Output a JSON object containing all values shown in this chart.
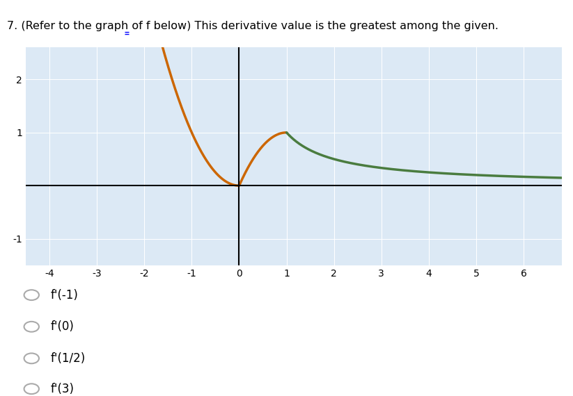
{
  "title_prefix": "7. (Refer to the graph of ",
  "title_f": "f",
  "title_suffix": " below) This derivative value is the greatest among the given.",
  "xlim": [
    -4.5,
    6.8
  ],
  "ylim": [
    -1.5,
    2.6
  ],
  "xticks": [
    -4,
    -3,
    -2,
    -1,
    0,
    1,
    2,
    3,
    4,
    5,
    6
  ],
  "yticks": [
    -1,
    1,
    2
  ],
  "orange_color": "#cc6600",
  "green_color": "#4a7c3f",
  "graph_bg": "#dce9f5",
  "choice_labels": [
    "f'(-1)",
    "f'(0)",
    "f'(1/2)",
    "f'(3)"
  ],
  "choice_fontsize": 12,
  "title_fontsize": 11.5
}
